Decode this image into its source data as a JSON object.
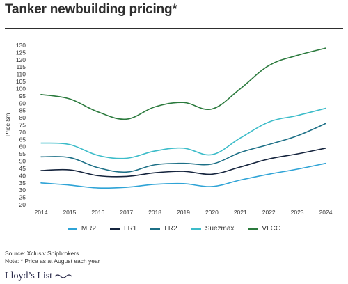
{
  "title": "Tanker newbuilding pricing*",
  "source": "Source: Xclusiv Shipbrokers",
  "note": "Note: * Price as at August each year",
  "logo_text": "Lloyd’s List",
  "chart_data": {
    "type": "line",
    "x": [
      2014,
      2015,
      2016,
      2017,
      2018,
      2019,
      2020,
      2021,
      2022,
      2023,
      2024
    ],
    "xlabel": "",
    "ylabel": "Price $m",
    "ylim": [
      20,
      130
    ],
    "yticks": [
      20,
      25,
      30,
      35,
      40,
      45,
      50,
      55,
      60,
      65,
      70,
      75,
      80,
      85,
      90,
      95,
      100,
      105,
      110,
      115,
      120,
      125,
      130
    ],
    "grid": false,
    "legend_position": "bottom",
    "series": [
      {
        "name": "MR2",
        "color": "#2ea3d6",
        "values": [
          35,
          33.5,
          31.5,
          32,
          34,
          34.5,
          32.5,
          37,
          41,
          44.5,
          48.5
        ]
      },
      {
        "name": "LR1",
        "color": "#15243d",
        "values": [
          43.5,
          44,
          40,
          39.5,
          42,
          43,
          41,
          46,
          51.5,
          55,
          59
        ]
      },
      {
        "name": "LR2",
        "color": "#1c6f86",
        "values": [
          53,
          52.5,
          45.5,
          42.5,
          47.5,
          48.5,
          48,
          56,
          61.5,
          67.5,
          76
        ]
      },
      {
        "name": "Suezmax",
        "color": "#3cbcc9",
        "values": [
          62.5,
          61.5,
          54,
          52,
          57,
          59,
          54.5,
          66,
          77,
          81.5,
          86.5
        ]
      },
      {
        "name": "VLCC",
        "color": "#2b7a3d",
        "values": [
          96,
          93,
          84,
          79,
          87.5,
          90.5,
          86,
          100,
          116,
          123,
          128
        ]
      }
    ]
  }
}
